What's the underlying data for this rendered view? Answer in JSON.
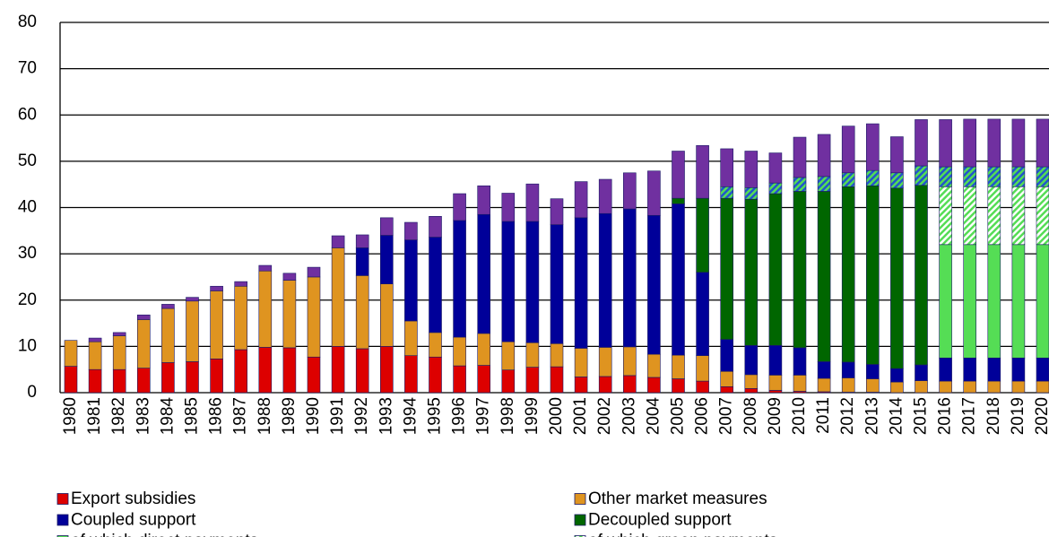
{
  "chart_data": {
    "type": "stacked-bar",
    "categories": [
      "1980",
      "1981",
      "1982",
      "1983",
      "1984",
      "1985",
      "1986",
      "1987",
      "1988",
      "1989",
      "1990",
      "1991",
      "1992",
      "1993",
      "1994",
      "1995",
      "1996",
      "1997",
      "1998",
      "1999",
      "2000",
      "2001",
      "2002",
      "2003",
      "2004",
      "2005",
      "2006",
      "2007",
      "2008",
      "2009",
      "2010",
      "2011",
      "2012",
      "2013",
      "2014",
      "2015",
      "2016",
      "2017",
      "2018",
      "2019",
      "2020"
    ],
    "ylim": [
      0,
      80
    ],
    "yticks": [
      0,
      10,
      20,
      30,
      40,
      50,
      60,
      70,
      80
    ],
    "grid": true,
    "series": [
      {
        "name": "Export subsidies",
        "color": "#dd0000",
        "values": [
          5.7,
          5,
          5,
          5.3,
          6.5,
          6.7,
          7.3,
          9.3,
          9.8,
          9.7,
          7.7,
          10,
          9.5,
          10,
          8,
          7.7,
          5.8,
          5.9,
          4.9,
          5.5,
          5.6,
          3.4,
          3.5,
          3.7,
          3.3,
          3,
          2.5,
          1.3,
          0.9,
          0.5,
          0.3,
          0.2,
          0.1,
          0.1,
          0,
          0,
          0,
          0,
          0,
          0,
          0
        ]
      },
      {
        "name": "Other market measures",
        "color": "#df9420",
        "values": [
          5.6,
          6,
          7.3,
          10.5,
          11.7,
          13.1,
          14.7,
          13.7,
          16.5,
          14.6,
          17.3,
          21.3,
          15.8,
          13.5,
          7.5,
          5.3,
          6.2,
          6.9,
          6.1,
          5.3,
          5,
          6.2,
          6.3,
          6.2,
          5,
          5.1,
          5.5,
          3.3,
          3,
          3.3,
          3.5,
          2.9,
          3.1,
          2.9,
          2.3,
          2.6,
          2.5,
          2.5,
          2.5,
          2.5,
          2.5
        ]
      },
      {
        "name": "Coupled support",
        "color": "#000099",
        "values": [
          0,
          0,
          0,
          0,
          0,
          0,
          0,
          0,
          0,
          0,
          0,
          0,
          6,
          10.5,
          17.5,
          20.6,
          25.2,
          25.7,
          26,
          26.2,
          25.7,
          28.2,
          28.9,
          29.8,
          30,
          32.7,
          18,
          6.9,
          6.3,
          6.4,
          5.9,
          3.6,
          3.4,
          3.1,
          2.9,
          3.4,
          5,
          5,
          5,
          5,
          5
        ]
      },
      {
        "name": "Decoupled support",
        "color": "#006600",
        "values": [
          0,
          0,
          0,
          0,
          0,
          0,
          0,
          0,
          0,
          0,
          0,
          0,
          0,
          0,
          0,
          0,
          0,
          0,
          0,
          0,
          0,
          0,
          0,
          0,
          0,
          1.2,
          16,
          30.5,
          31.6,
          32.8,
          33.8,
          36.8,
          37.9,
          38.6,
          39,
          38.8,
          0,
          0,
          0,
          0,
          0
        ]
      },
      {
        "name": "of which direct payments",
        "color": "#55dd55",
        "values": [
          0,
          0,
          0,
          0,
          0,
          0,
          0,
          0,
          0,
          0,
          0,
          0,
          0,
          0,
          0,
          0,
          0,
          0,
          0,
          0,
          0,
          0,
          0,
          0,
          0,
          0,
          0,
          0,
          0,
          0,
          0,
          0,
          0,
          0,
          0,
          0,
          24.5,
          24.5,
          24.5,
          24.5,
          24.5
        ]
      },
      {
        "name": "of which green payments",
        "color": "#55dd55",
        "hatch_color": "#ffffff",
        "values": [
          0,
          0,
          0,
          0,
          0,
          0,
          0,
          0,
          0,
          0,
          0,
          0,
          0,
          0,
          0,
          0,
          0,
          0,
          0,
          0,
          0,
          0,
          0,
          0,
          0,
          0,
          0,
          0,
          0,
          0,
          0,
          0,
          0,
          0,
          0,
          0,
          12.5,
          12.5,
          12.5,
          12.5,
          12.5
        ]
      },
      {
        "color": "#55dd55",
        "hatch_color": "#2255cc",
        "values": [
          0,
          0,
          0,
          0,
          0,
          0,
          0,
          0,
          0,
          0,
          0,
          0,
          0,
          0,
          0,
          0,
          0,
          0,
          0,
          0,
          0,
          0,
          0,
          0,
          0,
          0,
          0,
          2.5,
          2.5,
          2.3,
          3,
          3.2,
          3,
          3.3,
          3.3,
          4.2,
          4.3,
          4.3,
          4.3,
          4.3,
          4.3
        ]
      },
      {
        "color": "#7030a0",
        "values": [
          0,
          0.8,
          0.7,
          1,
          0.9,
          0.8,
          1,
          1,
          1.2,
          1.5,
          2.1,
          2.6,
          2.8,
          3.8,
          3.8,
          4.5,
          5.8,
          6.2,
          6.1,
          8.1,
          5.6,
          7.8,
          7.4,
          7.8,
          9.6,
          10.2,
          11.4,
          8.2,
          7.9,
          6.5,
          8.7,
          9.1,
          10.1,
          10.1,
          7.8,
          10,
          10.2,
          10.3,
          10.3,
          10.3,
          10.3
        ]
      }
    ]
  }
}
